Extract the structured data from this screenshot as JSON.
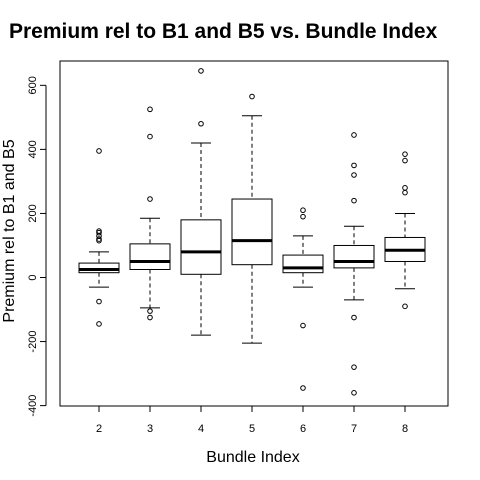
{
  "chart_data": {
    "type": "box",
    "title": "Premium rel to B1 and B5 vs. Bundle Index",
    "xlabel": "Bundle Index",
    "ylabel": "Premium rel to B1 and B5",
    "categories": [
      "2",
      "3",
      "4",
      "5",
      "6",
      "7",
      "8"
    ],
    "ylim": [
      -400,
      680
    ],
    "yticks": [
      -400,
      -200,
      0,
      200,
      400,
      600
    ],
    "boxes": [
      {
        "category": "2",
        "whisker_low": -30,
        "q1": 15,
        "median": 25,
        "q3": 45,
        "whisker_high": 80,
        "outliers": [
          395,
          145,
          140,
          130,
          120,
          115,
          -75,
          -145
        ]
      },
      {
        "category": "3",
        "whisker_low": -95,
        "q1": 25,
        "median": 50,
        "q3": 105,
        "whisker_high": 185,
        "outliers": [
          525,
          440,
          245,
          -105,
          -125
        ]
      },
      {
        "category": "4",
        "whisker_low": -180,
        "q1": 10,
        "median": 80,
        "q3": 180,
        "whisker_high": 420,
        "outliers": [
          645,
          480
        ]
      },
      {
        "category": "5",
        "whisker_low": -205,
        "q1": 40,
        "median": 115,
        "q3": 245,
        "whisker_high": 505,
        "outliers": [
          565
        ]
      },
      {
        "category": "6",
        "whisker_low": -30,
        "q1": 15,
        "median": 30,
        "q3": 70,
        "whisker_high": 130,
        "outliers": [
          210,
          190,
          -150,
          -345
        ]
      },
      {
        "category": "7",
        "whisker_low": -70,
        "q1": 30,
        "median": 50,
        "q3": 100,
        "whisker_high": 160,
        "outliers": [
          445,
          350,
          320,
          240,
          -125,
          -280,
          -360
        ]
      },
      {
        "category": "8",
        "whisker_low": -35,
        "q1": 50,
        "median": 85,
        "q3": 125,
        "whisker_high": 200,
        "outliers": [
          385,
          365,
          280,
          265,
          -90
        ]
      }
    ],
    "grid": false,
    "legend": "none"
  }
}
